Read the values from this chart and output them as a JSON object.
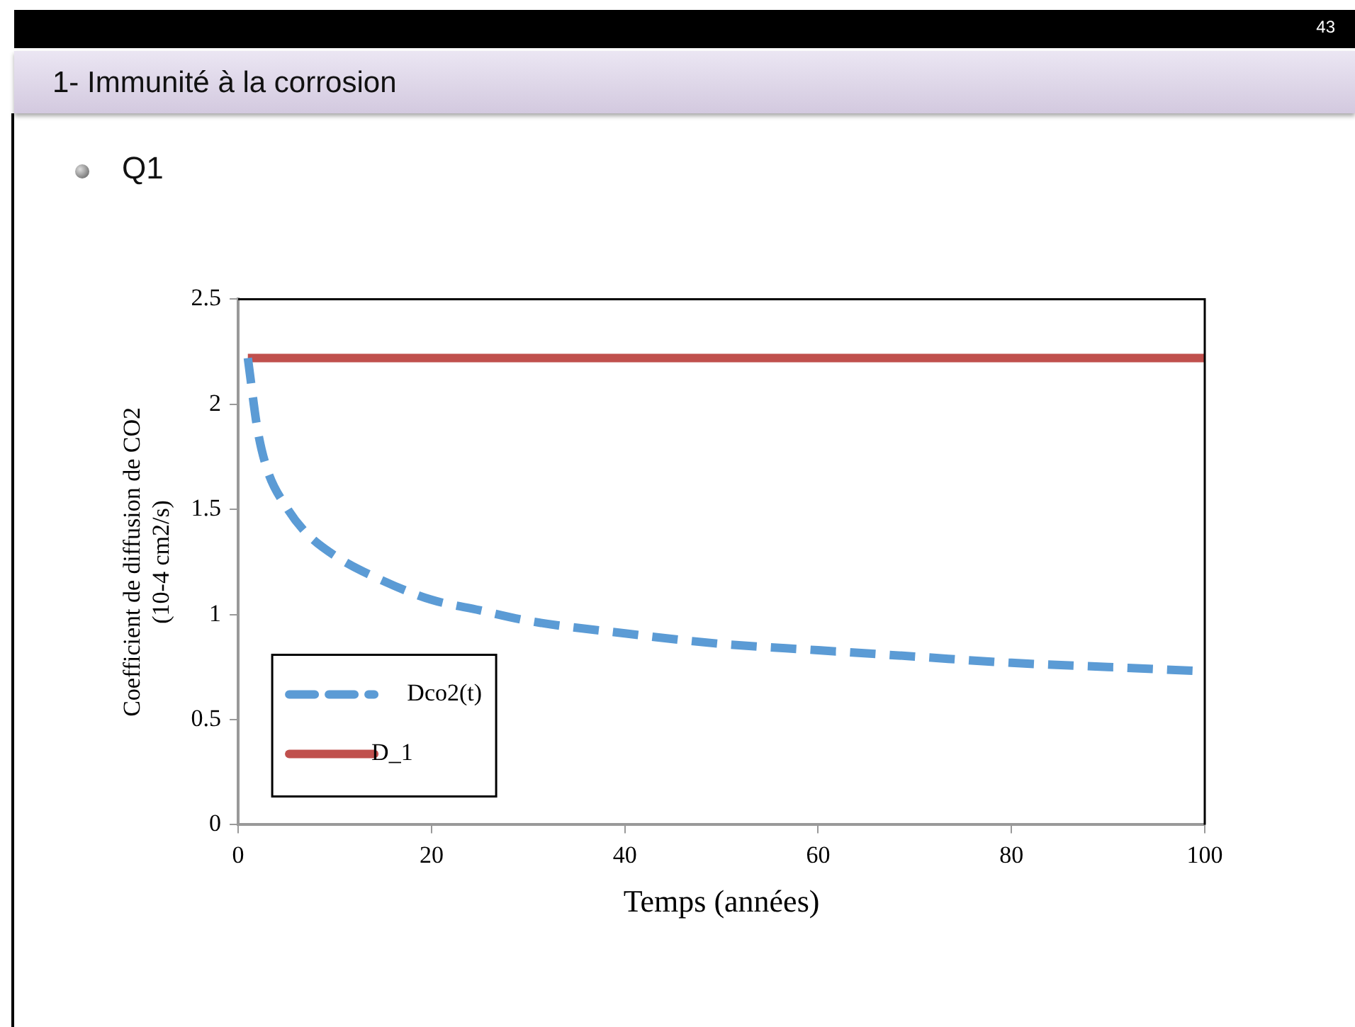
{
  "chart_data": {
    "type": "line",
    "title": "1- Immunité à la corrosion",
    "subtitle": "Q1",
    "annotations": [
      "43"
    ],
    "xlabel": "Temps (années)",
    "ylabel": "Coefficient de diffusion de CO2\n(10-4 cm2/s)",
    "xlim": [
      0,
      100
    ],
    "xticks": [
      0,
      20,
      40,
      60,
      80,
      100
    ],
    "ylim": [
      0,
      2.5
    ],
    "yticks": [
      0,
      0.5,
      1,
      1.5,
      2,
      2.5
    ],
    "legend": "bottom left",
    "series": [
      {
        "name": "Dco2(t)",
        "color": "#5b9bd5",
        "line_style": "dashed",
        "x": [
          1,
          2,
          3,
          5,
          7,
          10,
          15,
          20,
          25,
          30,
          40,
          50,
          60,
          70,
          80,
          90,
          100
        ],
        "values": [
          2.22,
          1.88,
          1.69,
          1.51,
          1.39,
          1.28,
          1.16,
          1.07,
          1.02,
          0.97,
          0.91,
          0.86,
          0.83,
          0.8,
          0.77,
          0.75,
          0.73
        ]
      },
      {
        "name": "D_1",
        "color": "#c0504d",
        "line_style": "solid",
        "x": [
          1,
          100
        ],
        "values": [
          2.22,
          2.22
        ]
      }
    ]
  }
}
